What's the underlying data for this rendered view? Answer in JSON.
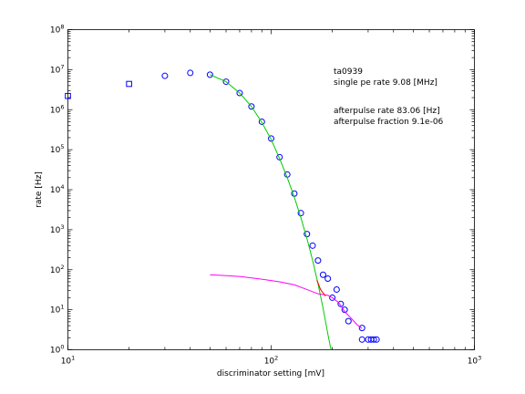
{
  "chart_data": {
    "type": "scatter",
    "xscale": "log",
    "yscale": "log",
    "xlim": [
      10,
      1000
    ],
    "ylim": [
      1,
      100000000
    ],
    "xlabel": "discriminator setting [mV]",
    "ylabel": "rate [Hz]",
    "xticks": [
      {
        "value": 10,
        "base": "10",
        "exp": "1"
      },
      {
        "value": 100,
        "base": "10",
        "exp": "2"
      },
      {
        "value": 1000,
        "base": "10",
        "exp": "3"
      }
    ],
    "yticks": [
      {
        "value": 1,
        "base": "10",
        "exp": "0"
      },
      {
        "value": 10,
        "base": "10",
        "exp": "1"
      },
      {
        "value": 100,
        "base": "10",
        "exp": "2"
      },
      {
        "value": 1000,
        "base": "10",
        "exp": "3"
      },
      {
        "value": 10000,
        "base": "10",
        "exp": "4"
      },
      {
        "value": 100000,
        "base": "10",
        "exp": "5"
      },
      {
        "value": 1000000,
        "base": "10",
        "exp": "6"
      },
      {
        "value": 10000000,
        "base": "10",
        "exp": "7"
      },
      {
        "value": 100000000,
        "base": "10",
        "exp": "8"
      }
    ],
    "annotations": [
      "ta0939",
      "single pe rate 9.08 [MHz]",
      "afterpulse rate 83.06 [Hz]",
      "afterpulse fraction 9.1e-06"
    ],
    "series": [
      {
        "kind": "squares",
        "color": "#0000ff",
        "points": [
          {
            "x": 10,
            "y": 2200000
          },
          {
            "x": 20,
            "y": 4400000
          }
        ]
      },
      {
        "kind": "circles",
        "color": "#0000ff",
        "points": [
          {
            "x": 30,
            "y": 7000000
          },
          {
            "x": 40,
            "y": 8300000
          },
          {
            "x": 50,
            "y": 7500000
          },
          {
            "x": 60,
            "y": 5000000
          },
          {
            "x": 70,
            "y": 2600000
          },
          {
            "x": 80,
            "y": 1200000
          },
          {
            "x": 90,
            "y": 500000
          },
          {
            "x": 100,
            "y": 190000
          },
          {
            "x": 110,
            "y": 65000
          },
          {
            "x": 120,
            "y": 24000
          },
          {
            "x": 130,
            "y": 8000
          },
          {
            "x": 140,
            "y": 2600
          },
          {
            "x": 150,
            "y": 780
          },
          {
            "x": 160,
            "y": 400
          },
          {
            "x": 170,
            "y": 170
          },
          {
            "x": 180,
            "y": 75
          },
          {
            "x": 190,
            "y": 60
          },
          {
            "x": 200,
            "y": 20
          },
          {
            "x": 210,
            "y": 32
          },
          {
            "x": 220,
            "y": 14
          },
          {
            "x": 230,
            "y": 10
          },
          {
            "x": 240,
            "y": 5.2
          },
          {
            "x": 280,
            "y": 3.5
          },
          {
            "x": 280,
            "y": 1.8
          },
          {
            "x": 300,
            "y": 1.8
          },
          {
            "x": 310,
            "y": 1.8
          },
          {
            "x": 320,
            "y": 1.8
          },
          {
            "x": 330,
            "y": 1.8
          }
        ]
      },
      {
        "kind": "line",
        "color": "#00cc00",
        "points": [
          {
            "x": 50,
            "y": 7500000
          },
          {
            "x": 60,
            "y": 5000000
          },
          {
            "x": 70,
            "y": 2600000
          },
          {
            "x": 80,
            "y": 1200000
          },
          {
            "x": 90,
            "y": 480000
          },
          {
            "x": 100,
            "y": 180000
          },
          {
            "x": 110,
            "y": 60000
          },
          {
            "x": 120,
            "y": 20000
          },
          {
            "x": 130,
            "y": 6500
          },
          {
            "x": 140,
            "y": 2000
          },
          {
            "x": 150,
            "y": 600
          },
          {
            "x": 160,
            "y": 170
          },
          {
            "x": 170,
            "y": 45
          },
          {
            "x": 180,
            "y": 11
          },
          {
            "x": 190,
            "y": 2.5
          },
          {
            "x": 197,
            "y": 1
          }
        ]
      },
      {
        "kind": "line",
        "color": "#ff00ff",
        "points": [
          {
            "x": 50,
            "y": 75
          },
          {
            "x": 70,
            "y": 68
          },
          {
            "x": 90,
            "y": 58
          },
          {
            "x": 110,
            "y": 50
          },
          {
            "x": 130,
            "y": 42
          },
          {
            "x": 150,
            "y": 32
          },
          {
            "x": 170,
            "y": 25
          },
          {
            "x": 190,
            "y": 23
          },
          {
            "x": 200,
            "y": 20
          },
          {
            "x": 215,
            "y": 15
          },
          {
            "x": 230,
            "y": 9
          },
          {
            "x": 250,
            "y": 5.8
          },
          {
            "x": 265,
            "y": 4.2
          },
          {
            "x": 280,
            "y": 3.4
          }
        ]
      },
      {
        "kind": "line",
        "color": "#ff0000",
        "points": [
          {
            "x": 168,
            "y": 55
          },
          {
            "x": 175,
            "y": 32
          },
          {
            "x": 185,
            "y": 22
          }
        ]
      }
    ]
  }
}
